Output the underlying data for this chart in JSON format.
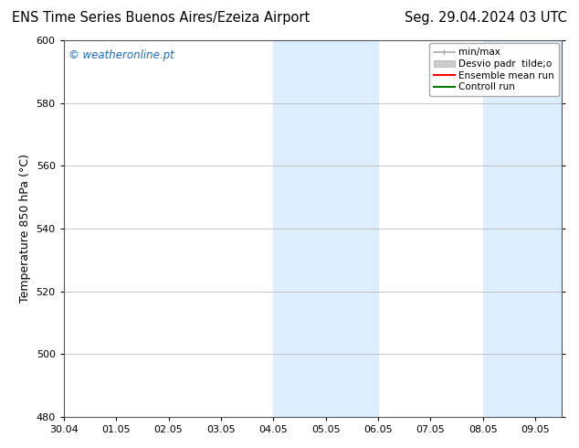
{
  "title_left": "ENS Time Series Buenos Aires/Ezeiza Airport",
  "title_right": "Seg. 29.04.2024 03 UTC",
  "ylabel": "Temperature 850 hPa (°C)",
  "watermark": "© weatheronline.pt",
  "watermark_color": "#1a6acc",
  "ylim": [
    480,
    600
  ],
  "yticks": [
    480,
    500,
    520,
    540,
    560,
    580,
    600
  ],
  "xtick_labels": [
    "30.04",
    "01.05",
    "02.05",
    "03.05",
    "04.05",
    "05.05",
    "06.05",
    "07.05",
    "08.05",
    "09.05"
  ],
  "background_color": "#ffffff",
  "plot_bg_color": "#ffffff",
  "shaded_bands": [
    {
      "x_start": 4.0,
      "x_end": 6.0,
      "color": "#ddeeff"
    },
    {
      "x_start": 8.0,
      "x_end": 9.5,
      "color": "#ddeeff"
    }
  ],
  "legend_entries": [
    {
      "label": "min/max",
      "color": "#aaaaaa",
      "lw": 1.2,
      "style": "minmax"
    },
    {
      "label": "Desvio padr  tilde;o",
      "color": "#cccccc",
      "lw": 8,
      "style": "bar"
    },
    {
      "label": "Ensemble mean run",
      "color": "#ff0000",
      "lw": 1.5,
      "style": "line"
    },
    {
      "label": "Controll run",
      "color": "#007700",
      "lw": 1.5,
      "style": "line"
    }
  ],
  "grid_color": "#bbbbbb",
  "spine_color": "#555555",
  "title_fontsize": 10.5,
  "label_fontsize": 9,
  "tick_fontsize": 8,
  "watermark_fontsize": 8.5,
  "legend_fontsize": 7.5,
  "x_min": 0.0,
  "x_max": 9.5
}
